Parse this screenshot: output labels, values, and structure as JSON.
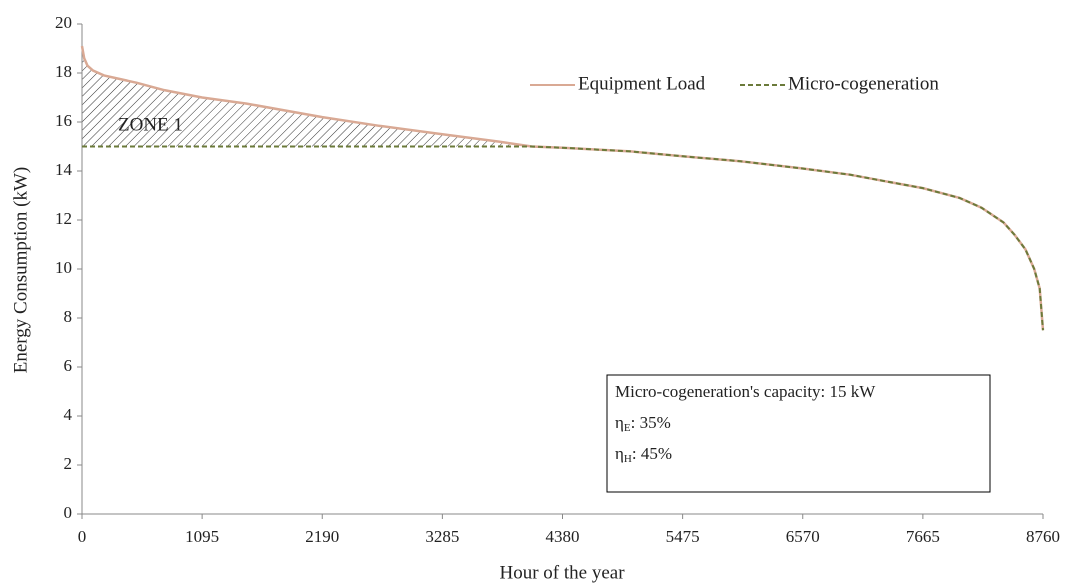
{
  "chart_data": {
    "type": "line",
    "xlabel": "Hour of the year",
    "ylabel": "Energy Consumption  (kW)",
    "x": [
      0,
      20,
      50,
      100,
      200,
      350,
      500,
      750,
      1095,
      1500,
      2190,
      2700,
      3285,
      3800,
      4100,
      4380,
      5000,
      5475,
      6000,
      6570,
      7000,
      7300,
      7665,
      8000,
      8200,
      8400,
      8500,
      8600,
      8680,
      8730,
      8760
    ],
    "series": [
      {
        "name": "Equipment Load",
        "color": "#d9a994",
        "dash": false,
        "values": [
          19.1,
          18.6,
          18.3,
          18.1,
          17.9,
          17.75,
          17.6,
          17.3,
          17.0,
          16.75,
          16.2,
          15.85,
          15.5,
          15.2,
          15.0,
          14.95,
          14.8,
          14.6,
          14.4,
          14.1,
          13.85,
          13.6,
          13.3,
          12.9,
          12.5,
          11.9,
          11.4,
          10.8,
          10.0,
          9.2,
          7.5
        ]
      },
      {
        "name": "Micro-cogeneration",
        "color": "#6b7a3a",
        "dash": true,
        "values": [
          15,
          15,
          15,
          15,
          15,
          15,
          15,
          15,
          15,
          15,
          15,
          15,
          15,
          15,
          15.0,
          14.95,
          14.8,
          14.6,
          14.4,
          14.1,
          13.85,
          13.6,
          13.3,
          12.9,
          12.5,
          11.9,
          11.4,
          10.8,
          10.0,
          9.2,
          7.5
        ]
      }
    ],
    "xlim": [
      0,
      8760
    ],
    "xticks": [
      0,
      1095,
      2190,
      3285,
      4380,
      5475,
      6570,
      7665,
      8760
    ],
    "ylim": [
      0,
      20
    ],
    "yticks": [
      0,
      2,
      4,
      6,
      8,
      10,
      12,
      14,
      16,
      18,
      20
    ],
    "grid": false,
    "legend": "top-right",
    "zone_label": "ZONE 1",
    "info_box": {
      "line1": "Micro-cogeneration's capacity: 15 kW",
      "eta_lines": [
        {
          "symbol": "η",
          "sub": "E",
          "rest": ": 35%"
        },
        {
          "symbol": "η",
          "sub": "H",
          "rest": ": 45%"
        }
      ]
    }
  }
}
